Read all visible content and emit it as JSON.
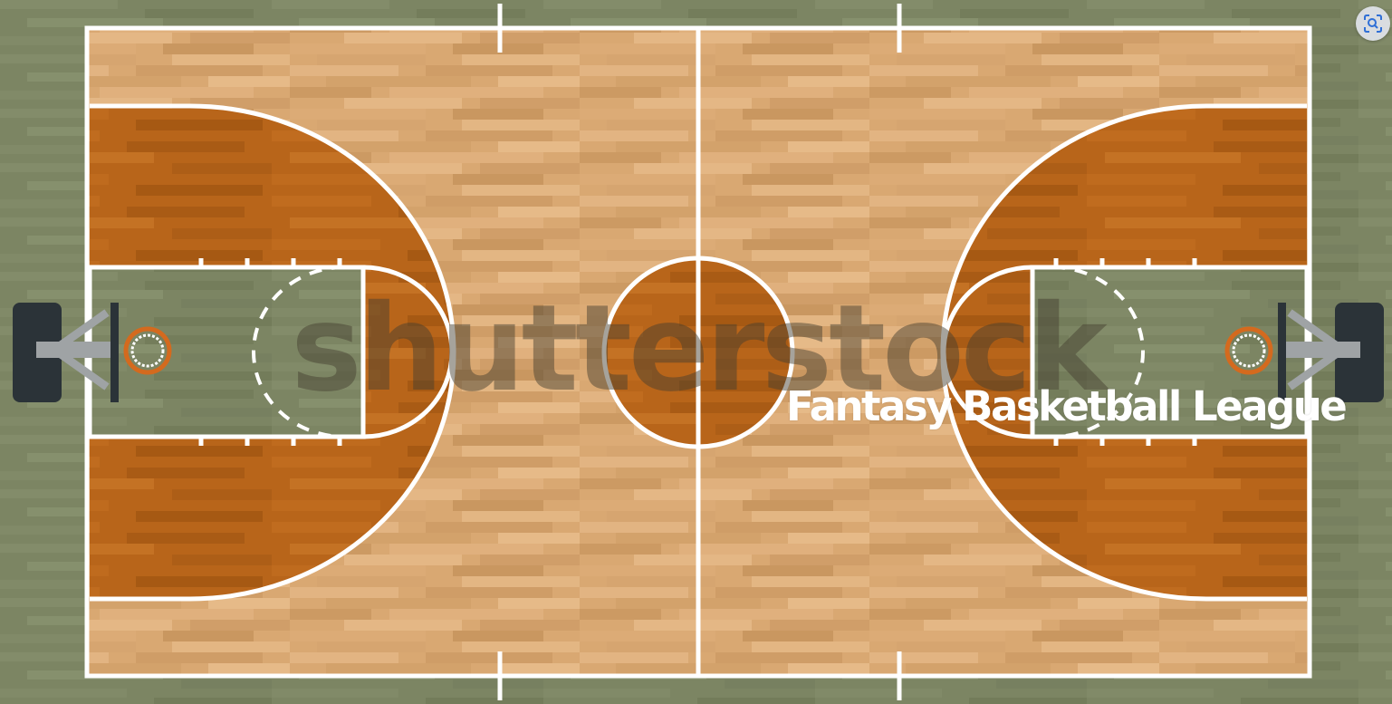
{
  "scene": {
    "court_floor_color": "#d9a872",
    "paint_area_color": "#7c8563",
    "outer_floor_color": "#7e8765",
    "key_zone_color": "#b8651a",
    "line_color": "#ffffff",
    "backboard_color": "#2b3338",
    "rim_color": "#d46a1e"
  },
  "watermark": {
    "text": "shutterstock"
  },
  "overlay": {
    "title": "Fantasy Basketball League"
  },
  "toolbar": {
    "lens_icon": "visual-search-icon"
  }
}
